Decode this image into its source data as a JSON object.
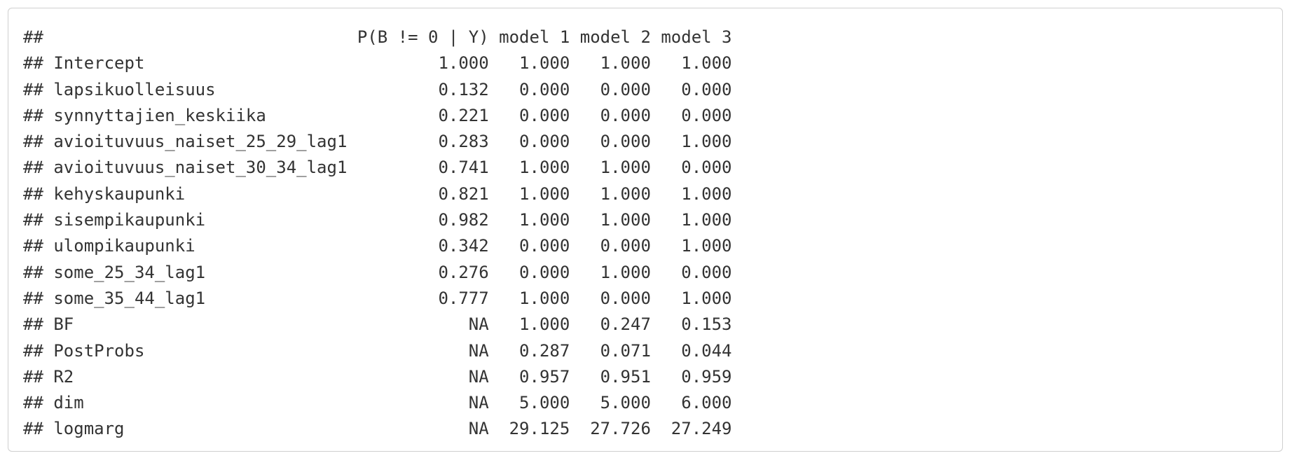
{
  "output": {
    "prefix": "##",
    "header": {
      "label": "",
      "columns": [
        "P(B != 0 | Y)",
        "model 1",
        "model 2",
        "model 3"
      ]
    },
    "rows": [
      {
        "label": "Intercept",
        "values": [
          "1.000",
          "1.000",
          "1.000",
          "1.000"
        ]
      },
      {
        "label": "lapsikuolleisuus",
        "values": [
          "0.132",
          "0.000",
          "0.000",
          "0.000"
        ]
      },
      {
        "label": "synnyttajien_keskiika",
        "values": [
          "0.221",
          "0.000",
          "0.000",
          "0.000"
        ]
      },
      {
        "label": "avioituvuus_naiset_25_29_lag1",
        "values": [
          "0.283",
          "0.000",
          "0.000",
          "1.000"
        ]
      },
      {
        "label": "avioituvuus_naiset_30_34_lag1",
        "values": [
          "0.741",
          "1.000",
          "1.000",
          "0.000"
        ]
      },
      {
        "label": "kehyskaupunki",
        "values": [
          "0.821",
          "1.000",
          "1.000",
          "1.000"
        ]
      },
      {
        "label": "sisempikaupunki",
        "values": [
          "0.982",
          "1.000",
          "1.000",
          "1.000"
        ]
      },
      {
        "label": "ulompikaupunki",
        "values": [
          "0.342",
          "0.000",
          "0.000",
          "1.000"
        ]
      },
      {
        "label": "some_25_34_lag1",
        "values": [
          "0.276",
          "0.000",
          "1.000",
          "0.000"
        ]
      },
      {
        "label": "some_35_44_lag1",
        "values": [
          "0.777",
          "1.000",
          "0.000",
          "1.000"
        ]
      },
      {
        "label": "BF",
        "values": [
          "NA",
          "1.000",
          "0.247",
          "0.153"
        ]
      },
      {
        "label": "PostProbs",
        "values": [
          "NA",
          "0.287",
          "0.071",
          "0.044"
        ]
      },
      {
        "label": "R2",
        "values": [
          "NA",
          "0.957",
          "0.951",
          "0.959"
        ]
      },
      {
        "label": "dim",
        "values": [
          "NA",
          "5.000",
          "5.000",
          "6.000"
        ]
      },
      {
        "label": "logmarg",
        "values": [
          "NA",
          "29.125",
          "27.726",
          "27.249"
        ]
      }
    ]
  }
}
